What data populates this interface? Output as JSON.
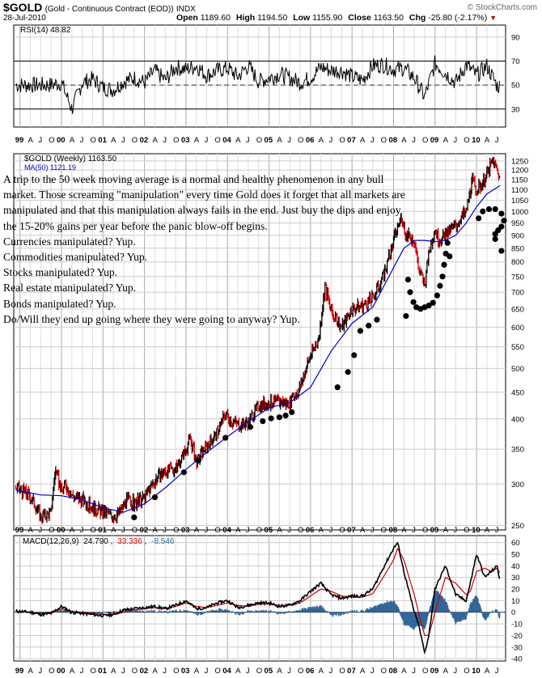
{
  "header": {
    "symbol": "$GOLD",
    "description": "(Gold - Continuous Contract (EOD))",
    "exchange": "INDX",
    "date": "28-Jul-2010",
    "open_label": "Open",
    "open": "1189.60",
    "high_label": "High",
    "high": "1194.50",
    "low_label": "Low",
    "low": "1155.90",
    "close_label": "Close",
    "close": "1163.50",
    "chg_label": "Chg",
    "chg": "-25.80 (-2.17%)",
    "watermark": "© StockCharts.com"
  },
  "colors": {
    "price": "#000000",
    "up_bar": "#000000",
    "down_bar": "#cc0000",
    "ma": "#0000cc",
    "macd_signal": "#cc0000",
    "histogram": "#336699",
    "rsi_fill": "#5a6e4a",
    "grid": "#cccccc"
  },
  "note": {
    "paragraph": "A trip to the 50 week moving average is a normal and healthy phenomenon in any bull market. Those screaming \"manipulation\" every time Gold does it forget that all markets are manipulated and that this manipulation always fails in the end. Just buy the dips and enjoy the 15-20% gains per year before the panic blow-off begins.",
    "lines": [
      "Currencies manipulated? Yup.",
      "Commodities manipulated? Yup.",
      "Stocks manipulated? Yup.",
      "Real estate manipulated? Yup.",
      "Bonds manipulated? Yup.",
      "Do/Will they end up going where they were going to anyway? Yup."
    ]
  },
  "chart_data": [
    {
      "type": "line",
      "panel": "rsi",
      "legend": "RSI(14) 48.82",
      "ylim": [
        15,
        100
      ],
      "yticks": [
        30,
        50,
        70,
        90
      ],
      "levels": [
        30,
        70
      ],
      "center_line": 50,
      "x": [
        1999.75,
        2000.0,
        2000.25,
        2000.5,
        2000.75,
        2001.0,
        2001.25,
        2001.5,
        2001.75,
        2002.0,
        2002.25,
        2002.5,
        2002.75,
        2003.0,
        2003.25,
        2003.5,
        2003.75,
        2004.0,
        2004.25,
        2004.5,
        2004.75,
        2005.0,
        2005.25,
        2005.5,
        2005.75,
        2006.0,
        2006.25,
        2006.5,
        2006.75,
        2007.0,
        2007.25,
        2007.5,
        2007.75,
        2008.0,
        2008.25,
        2008.5,
        2008.75,
        2009.0,
        2009.25,
        2009.5,
        2009.75,
        2010.0,
        2010.25,
        2010.5
      ],
      "values": [
        50,
        52,
        30,
        52,
        55,
        48,
        46,
        53,
        56,
        52,
        62,
        54,
        65,
        63,
        66,
        58,
        62,
        64,
        57,
        66,
        53,
        56,
        59,
        56,
        52,
        56,
        65,
        62,
        62,
        57,
        54,
        66,
        67,
        63,
        64,
        56,
        40,
        68,
        60,
        52,
        67,
        58,
        66,
        49
      ]
    },
    {
      "type": "line",
      "panel": "price",
      "legend": "$GOLD (Weekly) 1163.50",
      "legend_ma": "MA(50) 1121.19",
      "scale": "log",
      "ylim": [
        245,
        1290
      ],
      "yticks": [
        250,
        300,
        350,
        400,
        450,
        500,
        550,
        600,
        650,
        700,
        750,
        800,
        850,
        900,
        950,
        1000,
        1050,
        1100,
        1150,
        1200,
        1250
      ],
      "x": [
        1998.9,
        1999.25,
        1999.5,
        1999.75,
        1999.85,
        2000.0,
        2000.1,
        2000.25,
        2000.5,
        2000.75,
        2001.0,
        2001.25,
        2001.4,
        2001.6,
        2001.75,
        2002.0,
        2002.25,
        2002.5,
        2002.75,
        2003.0,
        2003.1,
        2003.25,
        2003.5,
        2003.75,
        2003.95,
        2004.1,
        2004.3,
        2004.5,
        2004.75,
        2005.0,
        2005.25,
        2005.5,
        2005.75,
        2006.0,
        2006.2,
        2006.35,
        2006.5,
        2006.75,
        2007.0,
        2007.25,
        2007.5,
        2007.75,
        2007.95,
        2008.0,
        2008.1,
        2008.2,
        2008.3,
        2008.5,
        2008.6,
        2008.75,
        2008.85,
        2009.0,
        2009.1,
        2009.25,
        2009.5,
        2009.75,
        2009.9,
        2010.0,
        2010.1,
        2010.25,
        2010.4,
        2010.5,
        2010.57
      ],
      "close": [
        295,
        285,
        260,
        265,
        320,
        290,
        300,
        285,
        280,
        270,
        265,
        260,
        265,
        280,
        275,
        282,
        305,
        318,
        320,
        350,
        368,
        330,
        355,
        375,
        410,
        395,
        390,
        395,
        425,
        430,
        430,
        430,
        460,
        530,
        570,
        720,
        640,
        600,
        650,
        660,
        680,
        750,
        840,
        880,
        930,
        980,
        900,
        880,
        780,
        720,
        830,
        930,
        880,
        900,
        940,
        1000,
        1150,
        1100,
        1120,
        1180,
        1250,
        1200,
        1163
      ]
    },
    {
      "type": "line",
      "panel": "price-ma",
      "series_name": "MA(50)",
      "scale": "log",
      "x": [
        1998.9,
        1999.5,
        2000.0,
        2000.5,
        2001.0,
        2001.5,
        2002.0,
        2002.5,
        2003.0,
        2003.5,
        2004.0,
        2004.5,
        2005.0,
        2005.5,
        2006.0,
        2006.5,
        2007.0,
        2007.5,
        2008.0,
        2008.25,
        2008.5,
        2008.75,
        2009.0,
        2009.25,
        2009.5,
        2009.75,
        2010.0,
        2010.25,
        2010.57
      ],
      "values": [
        292,
        286,
        285,
        280,
        270,
        265,
        275,
        295,
        320,
        345,
        370,
        395,
        420,
        430,
        460,
        540,
        610,
        655,
        780,
        850,
        880,
        880,
        875,
        880,
        900,
        950,
        1020,
        1080,
        1121
      ]
    },
    {
      "type": "scatter",
      "panel": "price-dots",
      "x": [
        2001.75,
        2002.25,
        2002.95,
        2003.3,
        2003.95,
        2004.55,
        2004.85,
        2005.05,
        2005.25,
        2005.4,
        2005.55,
        2006.65,
        2006.9,
        2007.05,
        2007.2,
        2007.4,
        2007.6,
        2008.3,
        2009.35,
        2010.6
      ],
      "values": [
        259,
        283,
        316,
        333,
        368,
        386,
        396,
        401,
        403,
        406,
        412,
        460,
        492,
        530,
        590,
        604,
        620,
        630,
        820,
        840
      ]
    },
    {
      "type": "scatter",
      "panel": "price-u",
      "x": [
        2008.35,
        2008.4,
        2008.48,
        2008.55,
        2008.65,
        2008.75,
        2008.85,
        2008.95,
        2009.05,
        2009.12,
        2009.18,
        2009.22,
        2009.26,
        2009.3
      ],
      "values": [
        740,
        700,
        670,
        655,
        650,
        655,
        660,
        668,
        690,
        720,
        750,
        790,
        830,
        870
      ]
    },
    {
      "type": "scatter",
      "panel": "price-question",
      "x": [
        2010.05,
        2010.15,
        2010.3,
        2010.45,
        2010.6,
        2010.66,
        2010.6,
        2010.52,
        2010.45,
        2010.45
      ],
      "values": [
        970,
        1000,
        1010,
        1010,
        990,
        960,
        935,
        920,
        905,
        885
      ]
    },
    {
      "type": "line",
      "panel": "macd",
      "legend_name": "MACD(12,26,9)",
      "legend_values": [
        "24.790",
        "33.336",
        "-8.546"
      ],
      "ylim": [
        -42,
        66
      ],
      "yticks": [
        -40,
        -30,
        -20,
        -10,
        0,
        10,
        20,
        30,
        40,
        50,
        60
      ],
      "x": [
        1998.9,
        1999.25,
        1999.5,
        1999.75,
        2000.0,
        2000.25,
        2000.5,
        2000.75,
        2001.0,
        2001.25,
        2001.5,
        2001.75,
        2002.0,
        2002.25,
        2002.5,
        2002.75,
        2003.0,
        2003.25,
        2003.5,
        2003.75,
        2004.0,
        2004.25,
        2004.5,
        2004.75,
        2005.0,
        2005.25,
        2005.5,
        2005.75,
        2006.0,
        2006.25,
        2006.5,
        2006.75,
        2007.0,
        2007.25,
        2007.5,
        2007.75,
        2008.0,
        2008.1,
        2008.25,
        2008.5,
        2008.6,
        2008.75,
        2008.85,
        2009.0,
        2009.25,
        2009.5,
        2009.75,
        2009.85,
        2010.0,
        2010.2,
        2010.35,
        2010.5,
        2010.57
      ],
      "values": [
        1,
        0,
        -2,
        -1,
        5,
        0,
        -1,
        -2,
        -3,
        -2,
        2,
        3,
        4,
        5,
        3,
        6,
        10,
        3,
        4,
        8,
        10,
        4,
        6,
        8,
        8,
        5,
        6,
        10,
        18,
        25,
        15,
        12,
        14,
        14,
        20,
        38,
        55,
        60,
        35,
        0,
        -10,
        -35,
        -20,
        20,
        40,
        15,
        10,
        25,
        50,
        30,
        35,
        40,
        25
      ],
      "signal": [
        1,
        0,
        -1,
        -1,
        3,
        1,
        0,
        -1,
        -2,
        -2,
        0,
        2,
        3,
        4,
        3,
        5,
        8,
        5,
        4,
        6,
        8,
        6,
        5,
        7,
        7,
        6,
        6,
        8,
        14,
        20,
        18,
        14,
        13,
        13,
        16,
        30,
        45,
        55,
        45,
        15,
        0,
        -20,
        -20,
        0,
        30,
        25,
        15,
        18,
        35,
        38,
        35,
        38,
        33
      ]
    }
  ],
  "time_axis": {
    "labels": [
      "99",
      "A",
      "J",
      "O",
      "00",
      "A",
      "J",
      "O",
      "01",
      "A",
      "J",
      "O",
      "02",
      "A",
      "J",
      "O",
      "03",
      "A",
      "J",
      "O",
      "04",
      "A",
      "J",
      "O",
      "05",
      "A",
      "J",
      "O",
      "06",
      "A",
      "J",
      "O",
      "07",
      "A",
      "J",
      "O",
      "08",
      "A",
      "J",
      "O",
      "09",
      "A",
      "J",
      "O",
      "10",
      "A",
      "J"
    ],
    "positions": [
      1999.0,
      1999.25,
      1999.5,
      1999.75,
      2000.0,
      2000.25,
      2000.5,
      2000.75,
      2001.0,
      2001.25,
      2001.5,
      2001.75,
      2002.0,
      2002.25,
      2002.5,
      2002.75,
      2003.0,
      2003.25,
      2003.5,
      2003.75,
      2004.0,
      2004.25,
      2004.5,
      2004.75,
      2005.0,
      2005.25,
      2005.5,
      2005.75,
      2006.0,
      2006.25,
      2006.5,
      2006.75,
      2007.0,
      2007.25,
      2007.5,
      2007.75,
      2008.0,
      2008.25,
      2008.5,
      2008.75,
      2009.0,
      2009.25,
      2009.5,
      2009.75,
      2010.0,
      2010.25,
      2010.5
    ],
    "range": [
      1998.85,
      2010.7
    ]
  }
}
